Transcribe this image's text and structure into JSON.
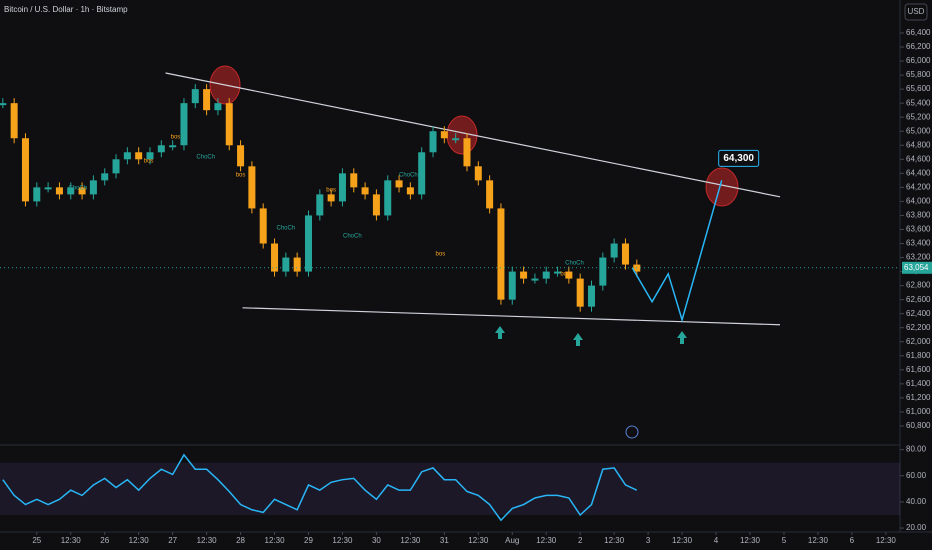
{
  "header": {
    "title": "Bitcoin / U.S. Dollar · 1h · Bitstamp",
    "currency": "USD"
  },
  "chart_data": [
    {
      "type": "candlestick",
      "up_color": "#26a69a",
      "down_color": "#f7a21b",
      "x": [
        0,
        4,
        8,
        12,
        16,
        20,
        24,
        28,
        32,
        36,
        40,
        44,
        48,
        52,
        56,
        60,
        64,
        68,
        72,
        76,
        80,
        84,
        88,
        92,
        96,
        100,
        104,
        108,
        112,
        116,
        120,
        124,
        128,
        132,
        136,
        140,
        144,
        148,
        152,
        156,
        160,
        164,
        168,
        172,
        176,
        180,
        184,
        188,
        192,
        196,
        200,
        204,
        208,
        212,
        216,
        220,
        224
      ],
      "values": [
        65400,
        64900,
        64000,
        64200,
        64200,
        64100,
        64200,
        64100,
        64300,
        64400,
        64600,
        64700,
        64600,
        64700,
        64800,
        64800,
        65400,
        65600,
        65300,
        65400,
        64800,
        64500,
        63900,
        63400,
        63000,
        63200,
        63000,
        63800,
        64100,
        64000,
        64400,
        64200,
        64100,
        63800,
        64300,
        64200,
        64100,
        64700,
        65000,
        64900,
        64900,
        64500,
        64300,
        63900,
        62600,
        63000,
        62900,
        62900,
        63000,
        63000,
        62900,
        62500,
        62800,
        63200,
        63400,
        63100,
        63000
      ],
      "xlim": [
        -1,
        317
      ],
      "ylim": [
        60600,
        66870
      ],
      "yticks": [
        {
          "value": 60800,
          "label": "60,800"
        },
        {
          "value": 61000,
          "label": "61,000"
        },
        {
          "value": 61200,
          "label": "61,200"
        },
        {
          "value": 61400,
          "label": "61,400"
        },
        {
          "value": 61600,
          "label": "61,600"
        },
        {
          "value": 61800,
          "label": "61,800"
        },
        {
          "value": 62000,
          "label": "62,000"
        },
        {
          "value": 62200,
          "label": "62,200"
        },
        {
          "value": 62400,
          "label": "62,400"
        },
        {
          "value": 62600,
          "label": "62,600"
        },
        {
          "value": 62800,
          "label": "62,800"
        },
        {
          "value": 63000,
          "label": "63,000"
        },
        {
          "value": 63200,
          "label": "63,200"
        },
        {
          "value": 63400,
          "label": "63,400"
        },
        {
          "value": 63600,
          "label": "63,600"
        },
        {
          "value": 63800,
          "label": "63,800"
        },
        {
          "value": 64000,
          "label": "64,000"
        },
        {
          "value": 64200,
          "label": "64,200"
        },
        {
          "value": 64400,
          "label": "64,400"
        },
        {
          "value": 64600,
          "label": "64,600"
        },
        {
          "value": 64800,
          "label": "64,800"
        },
        {
          "value": 65000,
          "label": "65,000"
        },
        {
          "value": 65200,
          "label": "65,200"
        },
        {
          "value": 65400,
          "label": "65,400"
        },
        {
          "value": 65600,
          "label": "65,600"
        },
        {
          "value": 65800,
          "label": "65,800"
        },
        {
          "value": 66000,
          "label": "66,000"
        },
        {
          "value": 66200,
          "label": "66,200"
        },
        {
          "value": 66400,
          "label": "66,400"
        }
      ],
      "xticks": [
        {
          "value": 12,
          "label": "25"
        },
        {
          "value": 24,
          "label": "12:30"
        },
        {
          "value": 36,
          "label": "26"
        },
        {
          "value": 48,
          "label": "12:30"
        },
        {
          "value": 60,
          "label": "27"
        },
        {
          "value": 72,
          "label": "12:30"
        },
        {
          "value": 84,
          "label": "28"
        },
        {
          "value": 96,
          "label": "12:30"
        },
        {
          "value": 108,
          "label": "29"
        },
        {
          "value": 120,
          "label": "12:30"
        },
        {
          "value": 132,
          "label": "30"
        },
        {
          "value": 144,
          "label": "12:30"
        },
        {
          "value": 156,
          "label": "31"
        },
        {
          "value": 168,
          "label": "12:30"
        },
        {
          "value": 180,
          "label": "Aug"
        },
        {
          "value": 192,
          "label": "12:30"
        },
        {
          "value": 204,
          "label": "2"
        },
        {
          "value": 216,
          "label": "12:30"
        },
        {
          "value": 228,
          "label": "3"
        },
        {
          "value": 240,
          "label": "12:30"
        },
        {
          "value": 252,
          "label": "4"
        },
        {
          "value": 264,
          "label": "12:30"
        },
        {
          "value": 276,
          "label": "5"
        },
        {
          "value": 288,
          "label": "12:30"
        },
        {
          "value": 300,
          "label": "6"
        },
        {
          "value": 312,
          "label": "12:30"
        }
      ],
      "last_price": {
        "value": 63054,
        "label": "63,054"
      },
      "trendlines": [
        {
          "x": [
            57.5,
            274.6
          ],
          "values": [
            65830,
            64065
          ]
        },
        {
          "x": [
            84.7,
            274.6
          ],
          "values": [
            62484,
            62242
          ]
        }
      ],
      "projection": {
        "color": "#29b6f6",
        "x": [
          222.4,
          229.4,
          235.1,
          240,
          254
        ],
        "values": [
          63054,
          62570,
          62968,
          62313,
          64300
        ]
      },
      "callout": {
        "value": 64300,
        "label": "64,300",
        "x": 260
      },
      "annotations": [
        {
          "text": "bos",
          "x": 61,
          "y": 64918
        },
        {
          "text": "ChoCh",
          "x": 71.7,
          "y": 64633
        },
        {
          "text": "bos",
          "x": 51.5,
          "y": 64576
        },
        {
          "text": "ChoCh",
          "x": 26.5,
          "y": 64191
        },
        {
          "text": "bos",
          "x": 84,
          "y": 64376
        },
        {
          "text": "ChoCh",
          "x": 100,
          "y": 63621
        },
        {
          "text": "bos",
          "x": 116,
          "y": 64163
        },
        {
          "text": "ChoCh",
          "x": 123.5,
          "y": 63507
        },
        {
          "text": "ChoCh",
          "x": 143.3,
          "y": 64376
        },
        {
          "text": "bos",
          "x": 154.6,
          "y": 63251
        },
        {
          "text": "ChoCh",
          "x": 202,
          "y": 63122
        },
        {
          "text": "bos",
          "x": 198.7,
          "y": 62966
        }
      ]
    },
    {
      "type": "line",
      "color": "#29b6f6",
      "x": [
        0,
        4,
        8,
        12,
        16,
        20,
        24,
        28,
        32,
        36,
        40,
        44,
        48,
        52,
        56,
        60,
        64,
        68,
        72,
        76,
        80,
        84,
        88,
        92,
        96,
        100,
        104,
        108,
        112,
        116,
        120,
        124,
        128,
        132,
        136,
        140,
        144,
        148,
        152,
        156,
        160,
        164,
        168,
        172,
        176,
        180,
        184,
        188,
        192,
        196,
        200,
        204,
        208,
        212,
        216,
        220,
        224
      ],
      "values": [
        57,
        45,
        38,
        42,
        38,
        42,
        49,
        45,
        53,
        58,
        51,
        57,
        49,
        58,
        65,
        61,
        76,
        65,
        65,
        57,
        48,
        38,
        34,
        32,
        42,
        38,
        34,
        53,
        49,
        55,
        57,
        58,
        49,
        42,
        53,
        49,
        49,
        63,
        66,
        57,
        57,
        48,
        45,
        38,
        26,
        35,
        38,
        43,
        45,
        45,
        43,
        30,
        38,
        65,
        66,
        53,
        49
      ],
      "xlim": [
        -1,
        317
      ],
      "ylim": [
        17,
        82
      ],
      "band": [
        30,
        70
      ],
      "yticks": [
        {
          "value": 20,
          "label": "20.00"
        },
        {
          "value": 40,
          "label": "40.00"
        },
        {
          "value": 60,
          "label": "60.00"
        },
        {
          "value": 80,
          "label": "80.00"
        }
      ]
    }
  ]
}
